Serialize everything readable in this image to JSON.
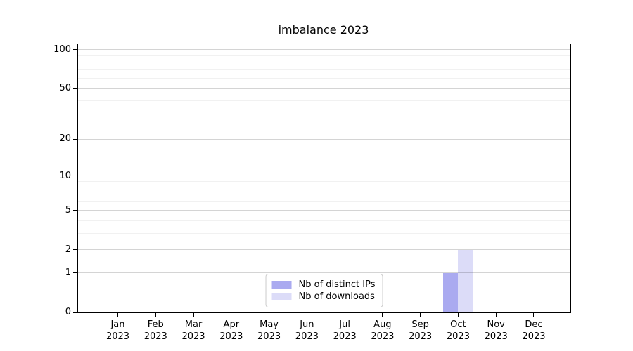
{
  "chart_data": {
    "type": "bar",
    "title": "imbalance 2023",
    "categories": [
      "Jan 2023",
      "Feb 2023",
      "Mar 2023",
      "Apr 2023",
      "May 2023",
      "Jun 2023",
      "Jul 2023",
      "Aug 2023",
      "Sep 2023",
      "Oct 2023",
      "Nov 2023",
      "Dec 2023"
    ],
    "series": [
      {
        "name": "Nb of distinct IPs",
        "color": "#aaaaf0",
        "values": [
          0,
          0,
          0,
          0,
          0,
          0,
          0,
          0,
          0,
          1,
          0,
          0
        ]
      },
      {
        "name": "Nb of downloads",
        "color": "#dcdcf8",
        "values": [
          0,
          0,
          0,
          0,
          0,
          0,
          0,
          0,
          0,
          2,
          0,
          0
        ]
      }
    ],
    "yscale": "log1p",
    "ylim": [
      0,
      110
    ],
    "yticks": [
      0,
      1,
      2,
      5,
      10,
      20,
      50,
      100
    ],
    "yticks_minor": [
      3,
      4,
      6,
      7,
      8,
      9,
      30,
      40,
      60,
      70,
      80,
      90
    ],
    "xlabel": "",
    "ylabel": "",
    "grid": true,
    "legend_position": "lower center",
    "colors": {
      "grid_major": "#d4d4d4",
      "grid_minor": "#f0f0f0",
      "axis": "#000000",
      "background": "#ffffff"
    }
  }
}
